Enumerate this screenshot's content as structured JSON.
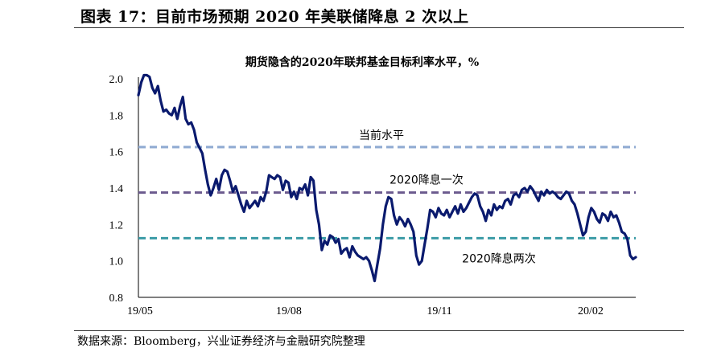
{
  "figure": {
    "title": "图表 17：目前市场预期 2020 年美联储降息 2 次以上",
    "source": "数据来源：Bloomberg，兴业证券经济与金融研究院整理"
  },
  "chart_data": {
    "type": "line",
    "title": "期货隐含的2020年联邦基金目标利率水平，%",
    "xlabel": "",
    "ylabel": "",
    "ylim": [
      0.8,
      2.0
    ],
    "yticks": [
      "0.8",
      "1.0",
      "1.2",
      "1.4",
      "1.6",
      "1.8",
      "2.0"
    ],
    "xticks": [
      "19/05",
      "19/08",
      "19/11",
      "20/02"
    ],
    "grid": false,
    "series": [
      {
        "name": "",
        "color": "#0a1a6e",
        "values": [
          1.91,
          1.98,
          2.02,
          2.02,
          2.01,
          1.95,
          1.92,
          1.96,
          1.88,
          1.82,
          1.83,
          1.81,
          1.8,
          1.84,
          1.78,
          1.85,
          1.9,
          1.78,
          1.75,
          1.76,
          1.72,
          1.65,
          1.62,
          1.59,
          1.5,
          1.42,
          1.36,
          1.4,
          1.45,
          1.39,
          1.47,
          1.5,
          1.49,
          1.44,
          1.38,
          1.41,
          1.36,
          1.31,
          1.27,
          1.33,
          1.29,
          1.31,
          1.33,
          1.3,
          1.35,
          1.33,
          1.38,
          1.47,
          1.46,
          1.45,
          1.47,
          1.46,
          1.39,
          1.44,
          1.43,
          1.35,
          1.38,
          1.34,
          1.4,
          1.39,
          1.42,
          1.36,
          1.46,
          1.44,
          1.28,
          1.2,
          1.06,
          1.11,
          1.09,
          1.14,
          1.13,
          1.1,
          1.12,
          1.04,
          1.06,
          1.07,
          1.02,
          1.08,
          1.05,
          1.03,
          1.02,
          1.01,
          1.02,
          1.0,
          0.95,
          0.89,
          0.98,
          1.07,
          1.2,
          1.3,
          1.35,
          1.34,
          1.25,
          1.2,
          1.24,
          1.22,
          1.19,
          1.23,
          1.2,
          1.16,
          1.03,
          0.98,
          1.0,
          1.09,
          1.18,
          1.28,
          1.27,
          1.24,
          1.29,
          1.26,
          1.25,
          1.28,
          1.24,
          1.27,
          1.3,
          1.26,
          1.31,
          1.27,
          1.29,
          1.32,
          1.35,
          1.37,
          1.36,
          1.3,
          1.27,
          1.22,
          1.28,
          1.25,
          1.31,
          1.28,
          1.3,
          1.29,
          1.33,
          1.34,
          1.31,
          1.36,
          1.37,
          1.35,
          1.39,
          1.4,
          1.38,
          1.41,
          1.39,
          1.36,
          1.33,
          1.38,
          1.36,
          1.39,
          1.37,
          1.38,
          1.37,
          1.35,
          1.34,
          1.36,
          1.38,
          1.37,
          1.33,
          1.31,
          1.26,
          1.2,
          1.14,
          1.16,
          1.24,
          1.29,
          1.27,
          1.23,
          1.21,
          1.26,
          1.25,
          1.22,
          1.27,
          1.24,
          1.25,
          1.21,
          1.16,
          1.15,
          1.12,
          1.03,
          1.01,
          1.02
        ]
      }
    ],
    "reference_lines": [
      {
        "label": "当前水平",
        "value": 1.625,
        "color": "#8faad2"
      },
      {
        "label": "2020降息一次",
        "value": 1.375,
        "color": "#6b5a8e"
      },
      {
        "label": "2020降息两次",
        "value": 1.125,
        "color": "#3a9ba6"
      }
    ]
  }
}
